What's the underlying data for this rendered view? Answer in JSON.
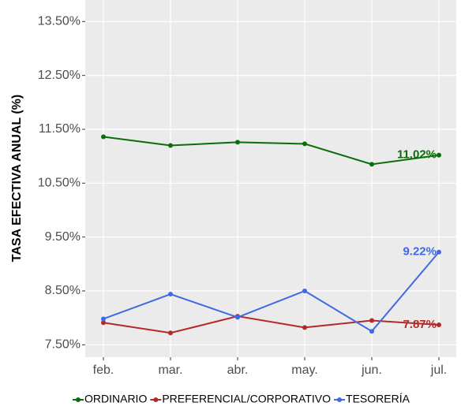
{
  "chart_data": {
    "type": "line",
    "y_label": "TASA EFECTIVA ANUAL (%)",
    "categories": [
      "feb.",
      "mar.",
      "abr.",
      "may.",
      "jun.",
      "jul."
    ],
    "series": [
      {
        "name": "ORDINARIO",
        "color": "#0b6e0b",
        "values": [
          11.36,
          11.2,
          11.26,
          11.23,
          10.85,
          11.02
        ],
        "value_labels": [
          null,
          null,
          null,
          null,
          null,
          "11.02%"
        ]
      },
      {
        "name": "PREFERENCIAL/CORPORATIVO",
        "color": "#b22a2a",
        "values": [
          7.91,
          7.72,
          8.03,
          7.82,
          7.95,
          7.87
        ],
        "value_labels": [
          null,
          null,
          null,
          null,
          null,
          "7.87%"
        ]
      },
      {
        "name": "TESORERÍA",
        "color": "#4169e1",
        "values": [
          7.98,
          8.44,
          8.01,
          8.5,
          7.75,
          9.22
        ],
        "value_labels": [
          null,
          null,
          null,
          null,
          null,
          "9.22%"
        ]
      }
    ],
    "ylim": [
      7.27,
      13.9
    ],
    "yticks": [
      {
        "value": 7.5,
        "label": "7.50%"
      },
      {
        "value": 8.5,
        "label": "8.50%"
      },
      {
        "value": 9.5,
        "label": "9.50%"
      },
      {
        "value": 10.5,
        "label": "10.50%"
      },
      {
        "value": 11.5,
        "label": "11.50%"
      },
      {
        "value": 12.5,
        "label": "12.50%"
      },
      {
        "value": 13.5,
        "label": "13.50%"
      }
    ],
    "grid": true,
    "legend": "bottom"
  }
}
